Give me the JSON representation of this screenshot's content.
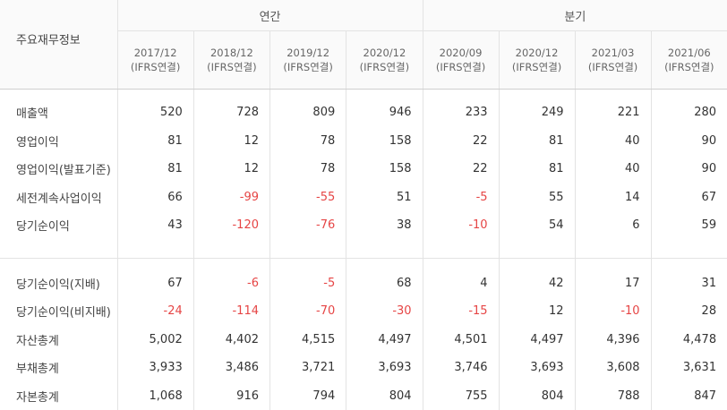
{
  "header": {
    "label_column": "주요재무정보",
    "annual_group": "연간",
    "quarter_group": "분기",
    "periods": [
      {
        "date": "2017/12",
        "basis": "(IFRS연결)"
      },
      {
        "date": "2018/12",
        "basis": "(IFRS연결)"
      },
      {
        "date": "2019/12",
        "basis": "(IFRS연결)"
      },
      {
        "date": "2020/12",
        "basis": "(IFRS연결)"
      },
      {
        "date": "2020/09",
        "basis": "(IFRS연결)"
      },
      {
        "date": "2020/12",
        "basis": "(IFRS연결)"
      },
      {
        "date": "2021/03",
        "basis": "(IFRS연결)"
      },
      {
        "date": "2021/06",
        "basis": "(IFRS연결)"
      }
    ]
  },
  "rows_group1": [
    {
      "label": "매출액",
      "values": [
        "520",
        "728",
        "809",
        "946",
        "233",
        "249",
        "221",
        "280"
      ]
    },
    {
      "label": "영업이익",
      "values": [
        "81",
        "12",
        "78",
        "158",
        "22",
        "81",
        "40",
        "90"
      ]
    },
    {
      "label": "영업이익(발표기준)",
      "values": [
        "81",
        "12",
        "78",
        "158",
        "22",
        "81",
        "40",
        "90"
      ]
    },
    {
      "label": "세전계속사업이익",
      "values": [
        "66",
        "-99",
        "-55",
        "51",
        "-5",
        "55",
        "14",
        "67"
      ]
    },
    {
      "label": "당기순이익",
      "values": [
        "43",
        "-120",
        "-76",
        "38",
        "-10",
        "54",
        "6",
        "59"
      ]
    }
  ],
  "rows_group2": [
    {
      "label": "당기순이익(지배)",
      "values": [
        "67",
        "-6",
        "-5",
        "68",
        "4",
        "42",
        "17",
        "31"
      ]
    },
    {
      "label": "당기순이익(비지배)",
      "values": [
        "-24",
        "-114",
        "-70",
        "-30",
        "-15",
        "12",
        "-10",
        "28"
      ]
    },
    {
      "label": "자산총계",
      "values": [
        "5,002",
        "4,402",
        "4,515",
        "4,497",
        "4,501",
        "4,497",
        "4,396",
        "4,478"
      ]
    },
    {
      "label": "부채총계",
      "values": [
        "3,933",
        "3,486",
        "3,721",
        "3,693",
        "3,746",
        "3,693",
        "3,608",
        "3,631"
      ]
    },
    {
      "label": "자본총계",
      "values": [
        "1,068",
        "916",
        "794",
        "804",
        "755",
        "804",
        "788",
        "847"
      ]
    }
  ],
  "colors": {
    "negative": "#e64545",
    "text": "#333333",
    "border": "#e3e3e3"
  }
}
